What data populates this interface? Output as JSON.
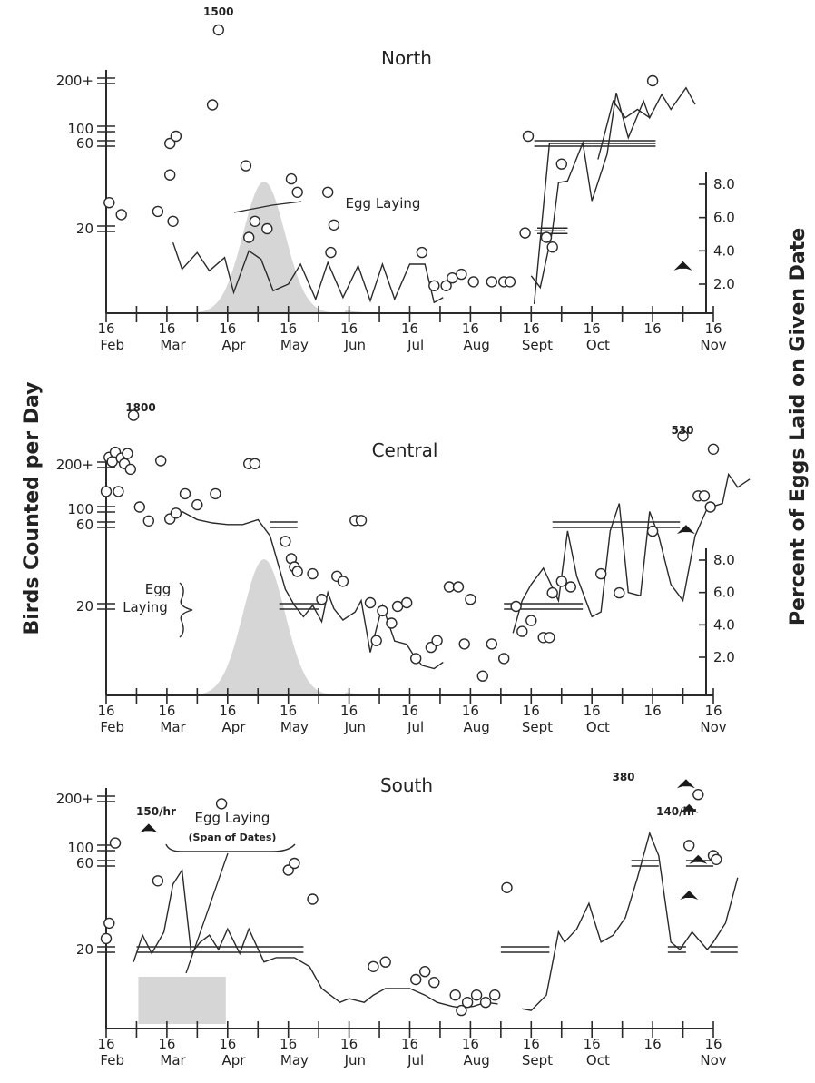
{
  "figure": {
    "left_axis_label": "Birds Counted per Day",
    "right_axis_label": "Percent of Eggs Laid on Given Date"
  },
  "chart_data": [
    {
      "type": "line",
      "title": "North",
      "month_labels": [
        "Feb",
        "Mar",
        "Apr",
        "May",
        "Jun",
        "Jul",
        "Aug",
        "Sept",
        "Oct",
        "Nov"
      ],
      "day_label": "16",
      "y_left_ticks": [
        "20",
        "60",
        "100",
        "200+"
      ],
      "y_right_ticks": [
        "2.0",
        "4.0",
        "6.0",
        "8.0"
      ],
      "annotations": [
        {
          "text": "1500",
          "month": 1.85
        },
        {
          "text": "Egg Laying",
          "month": 4.1
        }
      ],
      "counts_points": [
        [
          0.05,
          28
        ],
        [
          0.25,
          24
        ],
        [
          0.85,
          25
        ],
        [
          1.05,
          60
        ],
        [
          1.05,
          40
        ],
        [
          1.15,
          80
        ],
        [
          1.1,
          22
        ],
        [
          1.75,
          150
        ],
        [
          1.85,
          1500
        ],
        [
          2.3,
          45
        ],
        [
          2.35,
          18
        ],
        [
          2.45,
          22
        ],
        [
          2.65,
          20
        ],
        [
          3.05,
          38
        ],
        [
          3.15,
          32
        ],
        [
          3.65,
          32
        ],
        [
          3.7,
          15
        ],
        [
          3.75,
          21
        ],
        [
          5.2,
          15
        ],
        [
          5.4,
          10
        ],
        [
          5.6,
          10
        ],
        [
          5.7,
          11
        ],
        [
          5.85,
          11.5
        ],
        [
          6.05,
          10.5
        ],
        [
          6.35,
          10.5
        ],
        [
          6.55,
          10.5
        ],
        [
          6.65,
          10.5
        ],
        [
          6.9,
          19
        ],
        [
          6.95,
          80
        ],
        [
          7.25,
          18
        ],
        [
          7.35,
          16
        ],
        [
          7.5,
          46
        ],
        [
          9.0,
          200
        ]
      ],
      "counts_lines": [
        [
          [
            7.05,
            8
          ],
          [
            7.3,
            60
          ],
          [
            8.0,
            60
          ],
          [
            8.0,
            60
          ],
          [
            9.05,
            60
          ],
          [
            9.05,
            60
          ]
        ],
        [
          [
            7.05,
            19.5
          ],
          [
            7.55,
            19.5
          ]
        ]
      ],
      "percent_line": [
        [
          1.1,
          4.5
        ],
        [
          1.25,
          2.9
        ],
        [
          1.5,
          3.9
        ],
        [
          1.7,
          2.8
        ],
        [
          1.95,
          3.6
        ],
        [
          2.1,
          1.5
        ],
        [
          2.35,
          4.0
        ],
        [
          2.55,
          3.5
        ],
        [
          2.75,
          1.6
        ],
        [
          3.0,
          2.0
        ],
        [
          3.2,
          3.2
        ],
        [
          3.45,
          1.1
        ],
        [
          3.65,
          3.3
        ],
        [
          3.9,
          1.2
        ],
        [
          4.15,
          3.1
        ],
        [
          4.35,
          1.0
        ],
        [
          4.55,
          3.2
        ],
        [
          4.75,
          1.1
        ],
        [
          5.0,
          3.2
        ],
        [
          5.25,
          3.2
        ],
        [
          5.4,
          0.9
        ],
        [
          5.55,
          1.2
        ]
      ],
      "percent_line_2": [
        [
          7.0,
          2.5
        ],
        [
          7.15,
          1.8
        ],
        [
          7.35,
          5.2
        ],
        [
          7.45,
          8.1
        ],
        [
          7.6,
          8.2
        ],
        [
          7.85,
          10.5
        ],
        [
          8.0,
          7.0
        ],
        [
          8.25,
          9.8
        ],
        [
          8.4,
          13.5
        ],
        [
          8.6,
          10.8
        ],
        [
          8.85,
          13.0
        ],
        [
          8.95,
          12.0
        ],
        [
          9.15,
          13.4
        ],
        [
          9.3,
          12.5
        ],
        [
          9.55,
          13.8
        ],
        [
          9.7,
          12.8
        ]
      ],
      "percent_line_3": [
        [
          8.1,
          9.5
        ],
        [
          8.35,
          13.0
        ],
        [
          8.55,
          12.0
        ],
        [
          8.75,
          12.5
        ],
        [
          8.95,
          12.0
        ]
      ],
      "egg_laying_peak_month": 2.6,
      "arrow_markers": [
        [
          9.5,
          3.1
        ]
      ]
    },
    {
      "type": "line",
      "title": "Central",
      "month_labels": [
        "Feb",
        "Mar",
        "Apr",
        "May",
        "Jun",
        "Jul",
        "Aug",
        "Sept",
        "Oct",
        "Nov"
      ],
      "day_label": "16",
      "y_left_ticks": [
        "20",
        "60",
        "100",
        "200+"
      ],
      "y_right_ticks": [
        "2.0",
        "4.0",
        "6.0",
        "8.0"
      ],
      "annotations": [
        {
          "text": "1800",
          "month": 0.45
        },
        {
          "text": "530",
          "month": 9.3
        },
        {
          "text": "Egg",
          "month": 0.95
        },
        {
          "text": "Laying",
          "month": 0.95
        }
      ],
      "counts_points": [
        [
          0.0,
          140
        ],
        [
          0.05,
          280
        ],
        [
          0.1,
          230
        ],
        [
          0.15,
          350
        ],
        [
          0.2,
          140
        ],
        [
          0.25,
          270
        ],
        [
          0.3,
          210
        ],
        [
          0.35,
          330
        ],
        [
          0.4,
          190
        ],
        [
          0.45,
          1800
        ],
        [
          0.55,
          105
        ],
        [
          0.7,
          70
        ],
        [
          0.9,
          240
        ],
        [
          1.05,
          75
        ],
        [
          1.15,
          90
        ],
        [
          1.3,
          135
        ],
        [
          1.5,
          110
        ],
        [
          1.8,
          135
        ],
        [
          2.35,
          210
        ],
        [
          2.45,
          210
        ],
        [
          2.95,
          48
        ],
        [
          3.05,
          38
        ],
        [
          3.1,
          34
        ],
        [
          3.15,
          32
        ],
        [
          3.4,
          31
        ],
        [
          3.55,
          22
        ],
        [
          3.8,
          30
        ],
        [
          3.9,
          28
        ],
        [
          4.1,
          71
        ],
        [
          4.2,
          71
        ],
        [
          4.35,
          21
        ],
        [
          4.45,
          13.5
        ],
        [
          4.55,
          19
        ],
        [
          4.7,
          16.5
        ],
        [
          4.8,
          20
        ],
        [
          4.95,
          21
        ],
        [
          5.1,
          11
        ],
        [
          5.35,
          12.5
        ],
        [
          5.45,
          13.5
        ],
        [
          5.65,
          26
        ],
        [
          5.8,
          26
        ],
        [
          5.9,
          13
        ],
        [
          6.0,
          22
        ],
        [
          6.2,
          9
        ],
        [
          6.35,
          13
        ],
        [
          6.55,
          11
        ],
        [
          6.75,
          20
        ],
        [
          6.85,
          15
        ],
        [
          7.0,
          17
        ],
        [
          7.2,
          14
        ],
        [
          7.3,
          14
        ],
        [
          7.35,
          24
        ],
        [
          7.5,
          28
        ],
        [
          7.65,
          26
        ],
        [
          8.15,
          31
        ],
        [
          8.45,
          24
        ],
        [
          9.0,
          55
        ],
        [
          9.5,
          720
        ],
        [
          9.75,
          130
        ],
        [
          9.85,
          130
        ],
        [
          9.95,
          105
        ],
        [
          10.0,
          400
        ]
      ],
      "percent_line": [
        [
          1.25,
          11.0
        ],
        [
          1.5,
          10.5
        ],
        [
          1.75,
          10.3
        ],
        [
          2.0,
          10.2
        ],
        [
          2.25,
          10.2
        ],
        [
          2.5,
          10.5
        ],
        [
          2.7,
          9.5
        ],
        [
          2.95,
          6.2
        ],
        [
          3.1,
          5.2
        ],
        [
          3.25,
          4.5
        ],
        [
          3.4,
          5.2
        ],
        [
          3.55,
          4.2
        ],
        [
          3.65,
          6.0
        ],
        [
          3.75,
          5.0
        ],
        [
          3.9,
          4.3
        ],
        [
          4.1,
          4.8
        ],
        [
          4.2,
          5.5
        ],
        [
          4.35,
          2.3
        ],
        [
          4.55,
          5.2
        ],
        [
          4.75,
          3.0
        ],
        [
          4.95,
          2.8
        ],
        [
          5.05,
          2.2
        ],
        [
          5.2,
          1.5
        ],
        [
          5.4,
          1.3
        ],
        [
          5.55,
          1.7
        ]
      ],
      "percent_line_2": [
        [
          6.7,
          3.5
        ],
        [
          6.85,
          5.5
        ],
        [
          7.0,
          6.5
        ],
        [
          7.2,
          7.5
        ],
        [
          7.45,
          5.5
        ],
        [
          7.6,
          9.8
        ],
        [
          7.75,
          7.0
        ],
        [
          8.0,
          4.5
        ],
        [
          8.15,
          4.8
        ],
        [
          8.3,
          9.8
        ],
        [
          8.45,
          11.5
        ],
        [
          8.6,
          6.0
        ],
        [
          8.8,
          5.8
        ],
        [
          8.95,
          11.0
        ],
        [
          9.1,
          9.5
        ],
        [
          9.3,
          6.5
        ],
        [
          9.5,
          5.5
        ],
        [
          9.7,
          9.5
        ],
        [
          9.9,
          11.2
        ],
        [
          10.15,
          11.5
        ],
        [
          10.25,
          13.3
        ],
        [
          10.4,
          12.5
        ],
        [
          10.6,
          13.0
        ]
      ],
      "egg_laying_peak_month": 2.6,
      "arrow_markers": [
        [
          9.55,
          9.9
        ]
      ]
    },
    {
      "type": "line",
      "title": "South",
      "month_labels": [
        "Feb",
        "Mar",
        "Apr",
        "May",
        "Jun",
        "Jul",
        "Aug",
        "Sept",
        "Oct",
        "Nov"
      ],
      "day_label": "16",
      "y_left_ticks": [
        "20",
        "60",
        "100",
        "200+"
      ],
      "annotations": [
        {
          "text": "150/hr",
          "month": 0.7
        },
        {
          "text": "Egg Laying",
          "month": 1.75
        },
        {
          "text": "(Span of Dates)",
          "month": 1.75
        },
        {
          "text": "380",
          "month": 8.6
        },
        {
          "text": "140/hr",
          "month": 9.75
        }
      ],
      "counts_points": [
        [
          0.0,
          23
        ],
        [
          0.05,
          28
        ],
        [
          0.15,
          110
        ],
        [
          0.85,
          48
        ],
        [
          1.9,
          190
        ],
        [
          3.0,
          55
        ],
        [
          3.1,
          60
        ],
        [
          3.4,
          38
        ],
        [
          4.4,
          16
        ],
        [
          4.6,
          17
        ],
        [
          5.1,
          13.5
        ],
        [
          5.25,
          15
        ],
        [
          5.4,
          13
        ],
        [
          5.75,
          11
        ],
        [
          5.85,
          9
        ],
        [
          5.95,
          10
        ],
        [
          6.1,
          11
        ],
        [
          6.25,
          10
        ],
        [
          6.4,
          11
        ],
        [
          6.6,
          44
        ],
        [
          9.6,
          105
        ],
        [
          9.75,
          240
        ],
        [
          10.0,
          80
        ],
        [
          10.05,
          70
        ]
      ],
      "counts_lines": [
        [
          [
            0.45,
            17
          ],
          [
            0.6,
            24
          ],
          [
            0.75,
            19
          ],
          [
            0.95,
            25
          ],
          [
            1.1,
            46
          ],
          [
            1.25,
            55
          ],
          [
            1.4,
            19
          ],
          [
            1.55,
            22
          ],
          [
            1.7,
            24
          ],
          [
            1.85,
            20
          ],
          [
            2.0,
            26
          ],
          [
            2.2,
            19
          ],
          [
            2.35,
            26
          ],
          [
            2.6,
            17
          ],
          [
            2.8,
            18
          ],
          [
            3.1,
            18
          ],
          [
            3.35,
            16
          ],
          [
            3.55,
            12
          ],
          [
            3.85,
            10
          ],
          [
            4.0,
            10.5
          ],
          [
            4.25,
            10
          ],
          [
            4.4,
            11
          ],
          [
            4.6,
            12
          ],
          [
            4.75,
            12
          ],
          [
            5.0,
            12
          ],
          [
            5.25,
            11
          ],
          [
            5.45,
            10
          ],
          [
            5.7,
            9.5
          ],
          [
            5.85,
            9.3
          ],
          [
            6.05,
            9.5
          ],
          [
            6.25,
            10
          ],
          [
            6.45,
            9.8
          ]
        ],
        [
          [
            6.85,
            9.2
          ],
          [
            7.0,
            9.0
          ],
          [
            7.25,
            11
          ],
          [
            7.45,
            25
          ],
          [
            7.55,
            22
          ],
          [
            7.75,
            26
          ],
          [
            7.95,
            36
          ],
          [
            8.15,
            22
          ],
          [
            8.35,
            24
          ],
          [
            8.55,
            30
          ],
          [
            8.75,
            50
          ],
          [
            8.95,
            130
          ],
          [
            9.1,
            80
          ],
          [
            9.3,
            22
          ],
          [
            9.45,
            20
          ],
          [
            9.65,
            25
          ],
          [
            9.9,
            20
          ],
          [
            10.0,
            22
          ],
          [
            10.2,
            28
          ],
          [
            10.4,
            50
          ]
        ]
      ],
      "egg_laying_span_months": [
        0.5,
        2.0
      ],
      "arrow_markers": [
        [
          0.7,
          140
        ],
        [
          9.55,
          380
        ],
        [
          9.6,
          180
        ],
        [
          9.6,
          40
        ],
        [
          9.75,
          70
        ]
      ]
    }
  ]
}
